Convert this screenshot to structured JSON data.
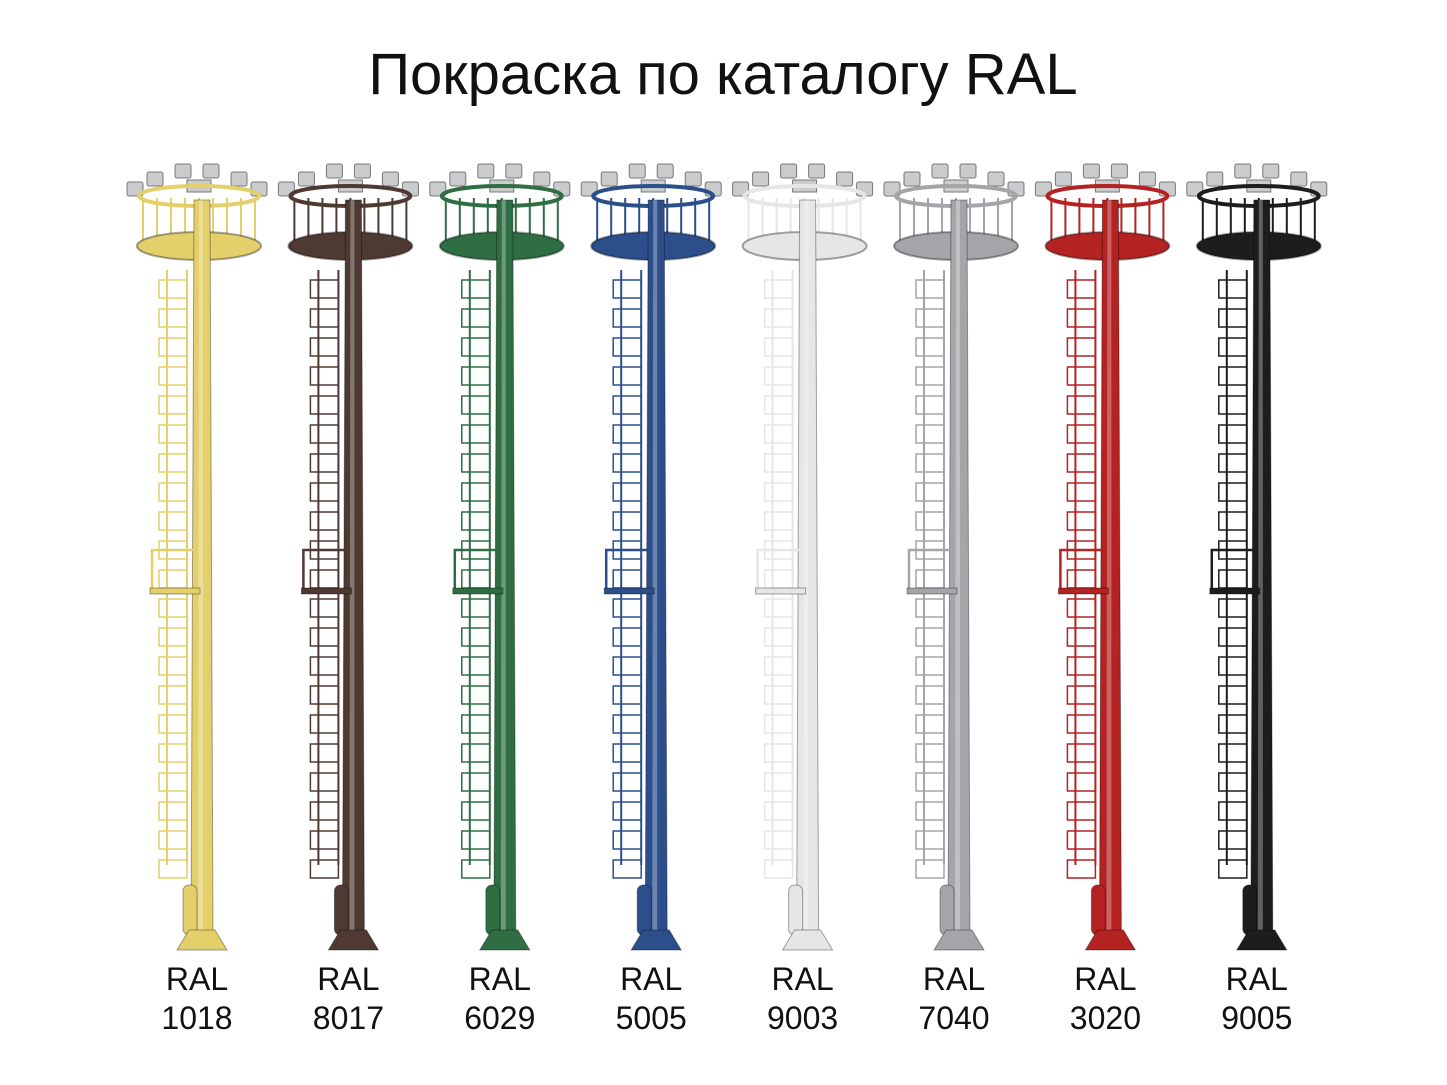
{
  "header": {
    "title": "Покраска по каталогу RAL"
  },
  "items": [
    {
      "label": "RAL",
      "code": "1018",
      "color": "#e3d06a"
    },
    {
      "label": "RAL",
      "code": "8017",
      "color": "#4e3a32"
    },
    {
      "label": "RAL",
      "code": "6029",
      "color": "#2f6e43"
    },
    {
      "label": "RAL",
      "code": "5005",
      "color": "#2c4f8c"
    },
    {
      "label": "RAL",
      "code": "9003",
      "color": "#e6e6e6"
    },
    {
      "label": "RAL",
      "code": "7040",
      "color": "#a3a5a8"
    },
    {
      "label": "RAL",
      "code": "3020",
      "color": "#b42222"
    },
    {
      "label": "RAL",
      "code": "9005",
      "color": "#1d1d1d"
    }
  ]
}
